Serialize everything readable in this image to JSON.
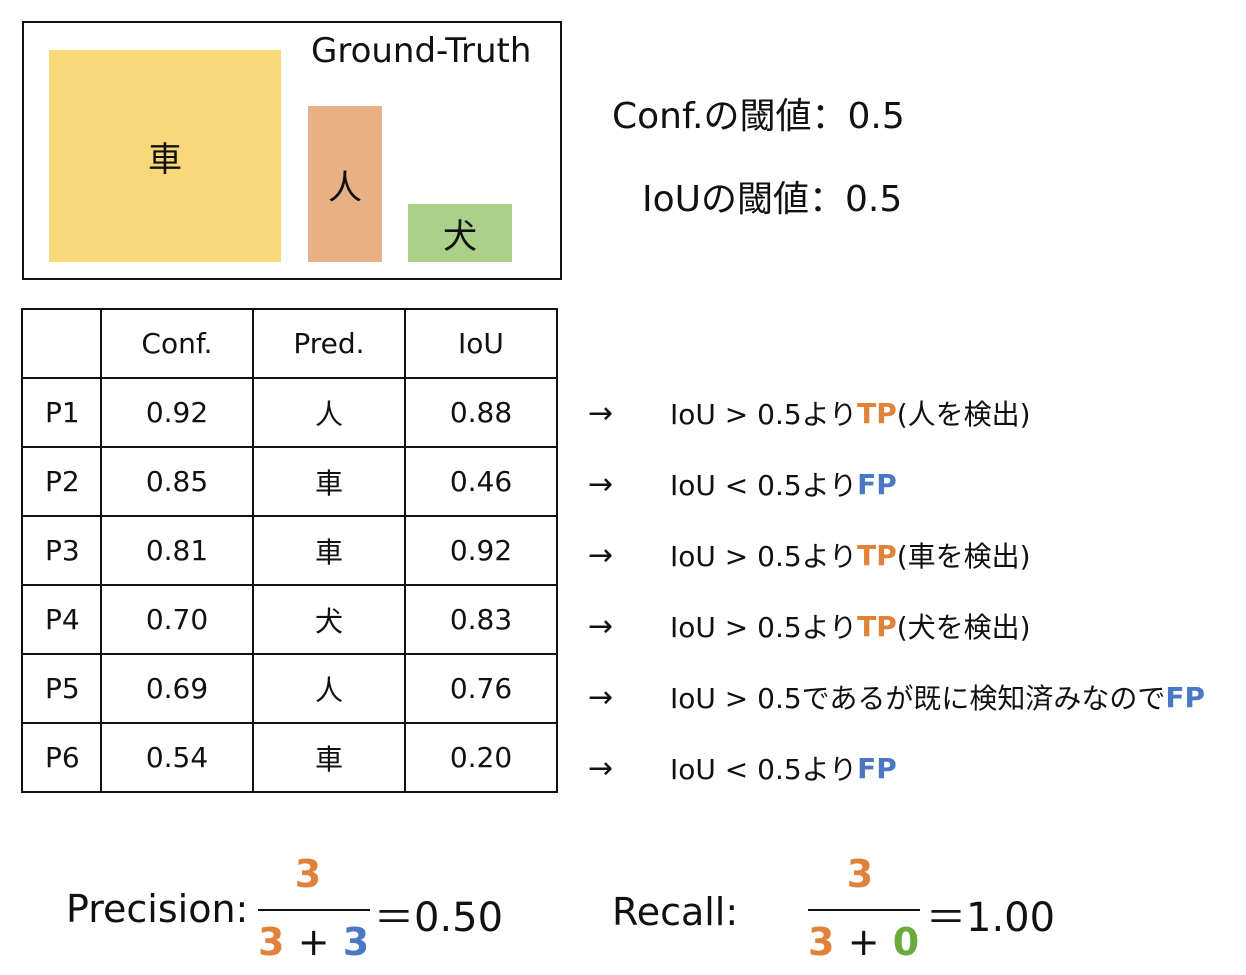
{
  "ground_truth": {
    "title": "Ground-Truth",
    "objects": [
      {
        "label": "車",
        "color": "#f8d878"
      },
      {
        "label": "人",
        "color": "#e8b085"
      },
      {
        "label": "犬",
        "color": "#abd08a"
      }
    ]
  },
  "thresholds": {
    "conf": "Conf.の閾値：0.5",
    "iou": "IoUの閾値：0.5"
  },
  "table": {
    "headers": [
      "",
      "Conf.",
      "Pred.",
      "IoU"
    ],
    "rows": [
      {
        "id": "P1",
        "conf": "0.92",
        "pred": "人",
        "iou": "0.88"
      },
      {
        "id": "P2",
        "conf": "0.85",
        "pred": "車",
        "iou": "0.46"
      },
      {
        "id": "P3",
        "conf": "0.81",
        "pred": "車",
        "iou": "0.92"
      },
      {
        "id": "P4",
        "conf": "0.70",
        "pred": "犬",
        "iou": "0.83"
      },
      {
        "id": "P5",
        "conf": "0.69",
        "pred": "人",
        "iou": "0.76"
      },
      {
        "id": "P6",
        "conf": "0.54",
        "pred": "車",
        "iou": "0.20"
      }
    ]
  },
  "conclusions": [
    {
      "arrow": "→",
      "text": "IoU > 0.5より",
      "result": "TP",
      "type": "tp",
      "note": "(人を検出)"
    },
    {
      "arrow": "→",
      "text": "IoU < 0.5より",
      "result": "FP",
      "type": "fp",
      "note": ""
    },
    {
      "arrow": "→",
      "text": "IoU > 0.5より",
      "result": "TP",
      "type": "tp",
      "note": "(車を検出)"
    },
    {
      "arrow": "→",
      "text": "IoU > 0.5より",
      "result": "TP",
      "type": "tp",
      "note": "(犬を検出)"
    },
    {
      "arrow": "→",
      "text": "IoU > 0.5であるが既に検知済みなので",
      "result": "FP",
      "type": "fp",
      "note": ""
    },
    {
      "arrow": "→",
      "text": "IoU < 0.5より",
      "result": "FP",
      "type": "fp",
      "note": ""
    }
  ],
  "precision": {
    "label": "Precision:",
    "numerator": "3",
    "denominator_a": "3",
    "plus": "+",
    "denominator_b": "3",
    "result": "＝0.50"
  },
  "recall": {
    "label": "Recall:",
    "numerator": "3",
    "denominator_a": "3",
    "plus": "+",
    "denominator_b": "0",
    "result": "＝1.00"
  },
  "colors": {
    "tp": "#e0823a",
    "fp": "#4a78c4",
    "fn": "#6aab3c"
  }
}
